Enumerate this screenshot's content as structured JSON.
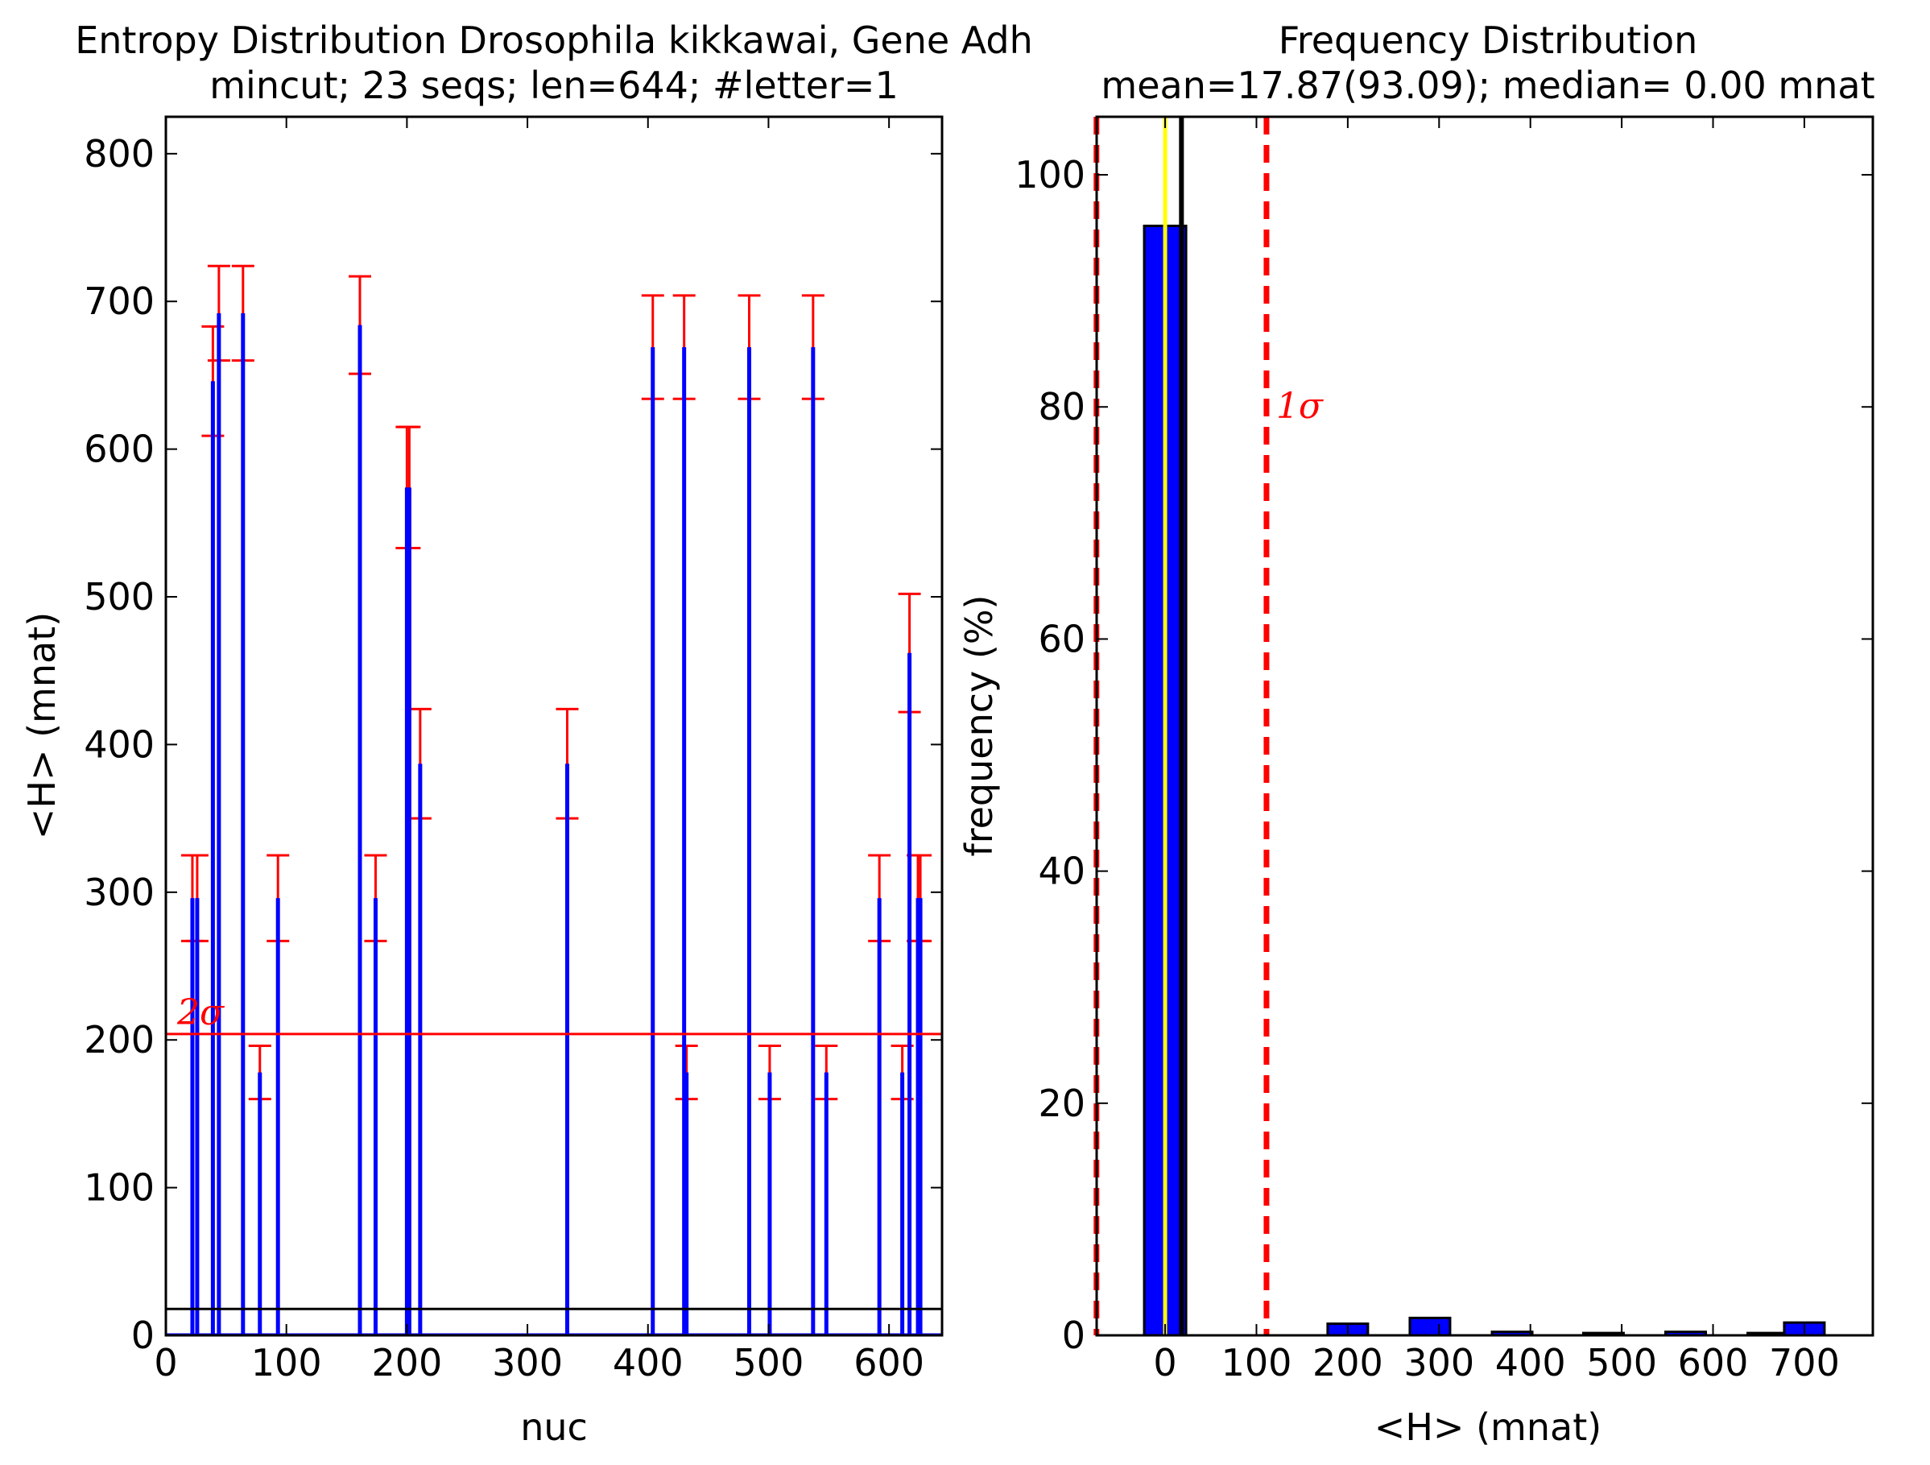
{
  "chart_data": [
    {
      "type": "bar",
      "title": "Entropy Distribution Drosophila kikkawai, Gene Adh",
      "subtitle": "mincut; 23 seqs; len=644; #letter=1",
      "xlabel": "nuc",
      "ylabel": "<H> (mnat)",
      "xlim": [
        0,
        644
      ],
      "ylim": [
        0,
        825
      ],
      "xticks": [
        0,
        100,
        200,
        300,
        400,
        500,
        600
      ],
      "yticks": [
        0,
        100,
        200,
        300,
        400,
        500,
        600,
        700,
        800
      ],
      "grid": false,
      "colors": {
        "bars": "#0000ff",
        "errorbars": "#ff0000",
        "threshold": "#ff0000",
        "mean": "#000000"
      },
      "mean_line": 17.87,
      "threshold_line": {
        "value": 204,
        "label": "2σ"
      },
      "x": [
        22,
        26,
        39,
        44,
        64,
        78,
        93,
        161,
        174,
        200,
        202,
        211,
        333,
        404,
        430,
        432,
        484,
        501,
        537,
        548,
        592,
        611,
        617,
        624,
        626
      ],
      "values": [
        296,
        296,
        646,
        692,
        692,
        178,
        296,
        684,
        296,
        574,
        574,
        387,
        387,
        669,
        669,
        178,
        669,
        178,
        669,
        178,
        296,
        178,
        462,
        296,
        296
      ],
      "errors": [
        29,
        29,
        37,
        32,
        32,
        18,
        29,
        33,
        29,
        41,
        41,
        37,
        37,
        35,
        35,
        18,
        35,
        18,
        35,
        18,
        29,
        18,
        40,
        29,
        29
      ]
    },
    {
      "type": "bar",
      "title": "Frequency Distribution",
      "subtitle": "mean=17.87(93.09); median= 0.00 mnat",
      "xlabel": "<H> (mnat)",
      "ylabel": "frequency (%)",
      "xlim": [
        -75,
        775
      ],
      "ylim": [
        0,
        105
      ],
      "xticks": [
        0,
        100,
        200,
        300,
        400,
        500,
        600,
        700
      ],
      "yticks": [
        0,
        20,
        40,
        60,
        80,
        100
      ],
      "grid": false,
      "colors": {
        "bars": "#0000ff",
        "sigma_lines": "#ff0000",
        "mean": "#000000",
        "median": "#ffff00"
      },
      "bins": [
        0,
        200,
        290,
        380,
        480,
        570,
        660,
        700
      ],
      "values": [
        95.6,
        1.0,
        1.5,
        0.3,
        0.2,
        0.3,
        0.2,
        1.1
      ],
      "mean_line": 17.87,
      "median_line": 0.0,
      "sigma_lines": [
        -75.2,
        111
      ],
      "sigma_label": "1σ"
    }
  ]
}
